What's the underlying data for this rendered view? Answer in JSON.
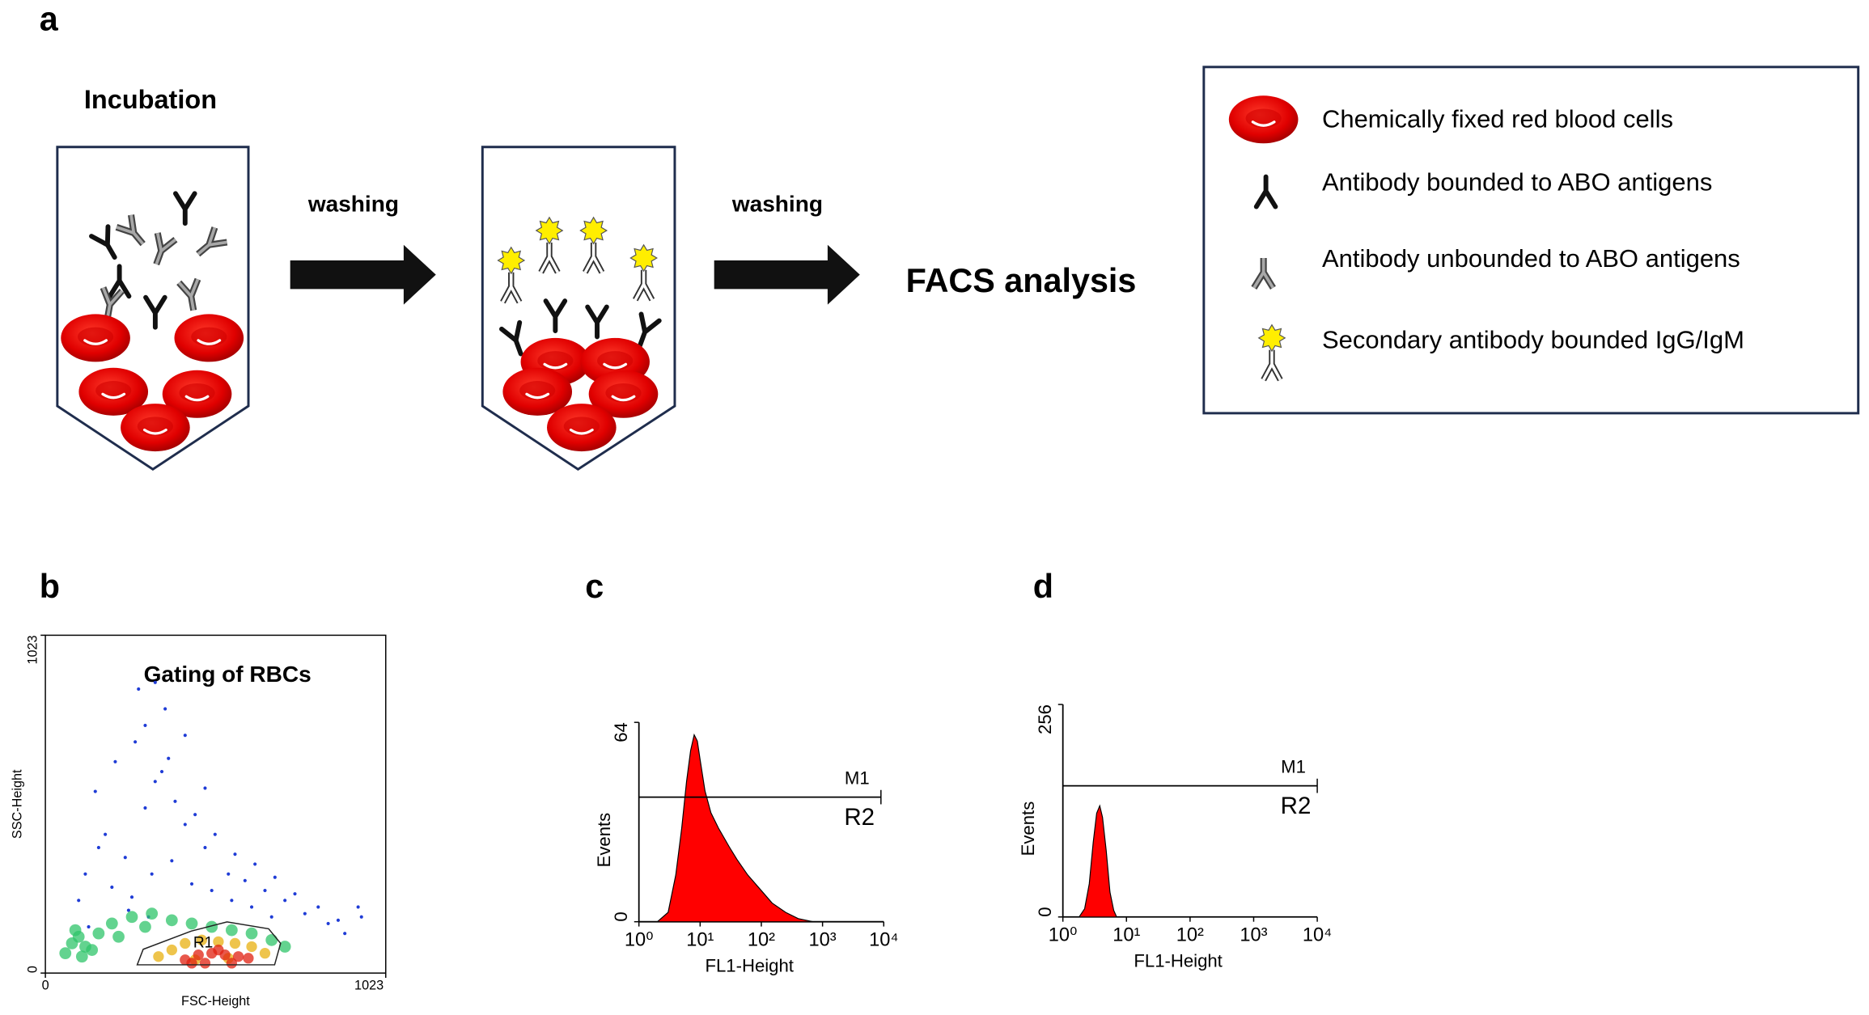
{
  "panel_a": {
    "label": "a",
    "step_label": "Incubation",
    "arrows": [
      "washing",
      "washing"
    ],
    "result": "FACS analysis",
    "legend": [
      "Chemically fixed red blood cells",
      "Antibody bounded to ABO antigens",
      "Antibody unbounded to ABO antigens",
      "Secondary antibody bounded IgG/IgM"
    ]
  },
  "chart_data": [
    {
      "type": "scatter",
      "panel_label": "b",
      "title": "Gating of RBCs",
      "x_label": "FSC-Height",
      "y_label": "SSC-Height",
      "xlim": [
        0,
        1023
      ],
      "ylim": [
        0,
        1023
      ],
      "xticks": [
        0,
        1023
      ],
      "yticks": [
        0,
        1023
      ],
      "series": [
        {
          "color": "#1f3cd6",
          "x": [
            120,
            180,
            240,
            300,
            350,
            420,
            480,
            550,
            600,
            660,
            720,
            780,
            850,
            900,
            950,
            100,
            150,
            210,
            270,
            330,
            390,
            450,
            510,
            570,
            630,
            690,
            750,
            820,
            880,
            200,
            260,
            320,
            380,
            440,
            500,
            560,
            620,
            680,
            300,
            360,
            420,
            480,
            250,
            310,
            370,
            130,
            330,
            280,
            940,
            160
          ],
          "values": [
            300,
            420,
            350,
            500,
            610,
            450,
            380,
            300,
            280,
            250,
            220,
            180,
            150,
            120,
            170,
            220,
            550,
            640,
            700,
            580,
            520,
            480,
            420,
            360,
            330,
            290,
            240,
            200,
            160,
            260,
            230,
            300,
            340,
            270,
            250,
            220,
            200,
            170,
            750,
            800,
            720,
            560,
            190,
            170,
            650,
            140,
            880,
            860,
            200,
            380
          ]
        },
        {
          "color": "#2fc46a",
          "x": [
            60,
            80,
            100,
            120,
            140,
            90,
            110,
            160,
            200,
            260,
            320,
            380,
            440,
            500,
            560,
            620,
            680,
            220,
            300,
            720
          ],
          "values": [
            60,
            90,
            110,
            80,
            70,
            130,
            50,
            120,
            150,
            170,
            180,
            160,
            150,
            140,
            130,
            120,
            100,
            110,
            140,
            80
          ]
        },
        {
          "color": "#e8b010",
          "x": [
            340,
            380,
            420,
            470,
            520,
            570,
            620,
            660,
            450,
            550
          ],
          "values": [
            50,
            70,
            90,
            100,
            95,
            90,
            80,
            60,
            40,
            45
          ]
        },
        {
          "color": "#e02010",
          "x": [
            420,
            460,
            500,
            540,
            580,
            610,
            480,
            560,
            520,
            440
          ],
          "values": [
            40,
            55,
            60,
            55,
            50,
            45,
            30,
            30,
            70,
            30
          ]
        }
      ],
      "gate": {
        "label": "R1",
        "x": [
          276,
          294,
          438,
          546,
          671,
          707,
          689
        ],
        "y": [
          25,
          72,
          127,
          155,
          134,
          90,
          25
        ]
      }
    },
    {
      "type": "area",
      "panel_label": "c",
      "x_label": "FL1-Height",
      "y_label": "Events",
      "xlog": true,
      "color": "#ff0000",
      "xlim": [
        1,
        10000
      ],
      "ylim": [
        0,
        64
      ],
      "xticks": [
        {
          "value": 1,
          "label": "10⁰"
        },
        {
          "value": 10,
          "label": "10¹"
        },
        {
          "value": 100,
          "label": "10²"
        },
        {
          "value": 1000,
          "label": "10³"
        },
        {
          "value": 10000,
          "label": "10⁴"
        }
      ],
      "yticks": [
        0,
        64
      ],
      "x": [
        2,
        3,
        4,
        5,
        6,
        7,
        8,
        9,
        10,
        12,
        15,
        20,
        30,
        40,
        60,
        100,
        150,
        250,
        400,
        700
      ],
      "values": [
        0,
        3,
        15,
        30,
        45,
        55,
        60,
        58,
        52,
        42,
        35,
        30,
        24,
        20,
        15,
        10,
        6,
        3,
        1,
        0
      ],
      "marker": {
        "label": "M1",
        "region_label": "R2",
        "y": 40,
        "x": [
          1,
          9000
        ]
      }
    },
    {
      "type": "area",
      "panel_label": "d",
      "x_label": "FL1-Height",
      "y_label": "Events",
      "xlog": true,
      "color": "#ff0000",
      "xlim": [
        1,
        10000
      ],
      "ylim": [
        0,
        256
      ],
      "xticks": [
        {
          "value": 1,
          "label": "10⁰"
        },
        {
          "value": 10,
          "label": "10¹"
        },
        {
          "value": 100,
          "label": "10²"
        },
        {
          "value": 1000,
          "label": "10³"
        },
        {
          "value": 10000,
          "label": "10⁴"
        }
      ],
      "yticks": [
        0,
        256
      ],
      "x": [
        1.8,
        2.2,
        2.6,
        3,
        3.4,
        3.8,
        4.2,
        4.8,
        5.5,
        6.3,
        7
      ],
      "values": [
        0,
        10,
        40,
        90,
        125,
        134,
        120,
        80,
        30,
        8,
        0
      ],
      "marker": {
        "label": "M1",
        "region_label": "R2",
        "y": 158,
        "x": [
          1,
          10000
        ]
      }
    }
  ]
}
